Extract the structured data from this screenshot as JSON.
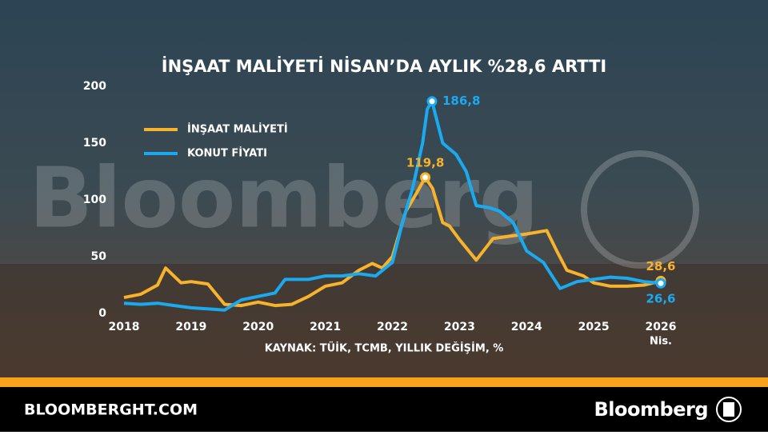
{
  "chart_data": {
    "type": "line",
    "title": "İNŞAAT MALİYETİ NİSAN’DA AYLIK %28,6 ARTTI",
    "source": "KAYNAK: TÜİK, TCMB, YILLIK DEĞİŞİM, %",
    "watermark": "Bloomberg",
    "x_end_note": "Nis.",
    "xlim": [
      2018,
      2026
    ],
    "xticks": [
      2018,
      2019,
      2020,
      2021,
      2022,
      2023,
      2024,
      2025,
      2026
    ],
    "ylim": [
      0,
      200
    ],
    "yticks": [
      0,
      50,
      100,
      150,
      200
    ],
    "grid": false,
    "legend": "upper left",
    "series": [
      {
        "name": "İNŞAAT MALİYETİ",
        "color": "#f7b32b",
        "x": [
          2018,
          2018.25,
          2018.5,
          2018.62,
          2018.85,
          2019,
          2019.25,
          2019.5,
          2019.75,
          2020,
          2020.25,
          2020.5,
          2020.75,
          2021,
          2021.25,
          2021.5,
          2021.7,
          2021.85,
          2022,
          2022.2,
          2022.35,
          2022.49,
          2022.6,
          2022.75,
          2022.85,
          2023,
          2023.25,
          2023.5,
          2023.75,
          2024,
          2024.3,
          2024.45,
          2024.6,
          2024.85,
          2025,
          2025.25,
          2025.5,
          2025.75,
          2026
        ],
        "values": [
          14,
          17,
          25,
          40,
          27,
          28,
          26,
          8,
          7,
          10,
          7,
          8,
          15,
          24,
          27,
          38,
          44,
          40,
          50,
          90,
          105,
          119.8,
          110,
          80,
          77,
          65,
          47,
          66,
          68,
          70,
          73,
          55,
          38,
          33,
          27,
          24,
          24,
          25,
          28.6
        ],
        "value_labels": [
          null,
          null,
          null,
          null,
          null,
          null,
          null,
          null,
          null,
          null,
          null,
          null,
          null,
          null,
          null,
          null,
          null,
          null,
          null,
          null,
          null,
          "119,8",
          null,
          null,
          null,
          null,
          null,
          null,
          null,
          null,
          null,
          null,
          null,
          null,
          null,
          null,
          null,
          null,
          "28,6"
        ]
      },
      {
        "name": "KONUT FİYATI",
        "color": "#1ba9ef",
        "x": [
          2018,
          2018.25,
          2018.5,
          2018.75,
          2019,
          2019.25,
          2019.5,
          2019.75,
          2020,
          2020.25,
          2020.4,
          2020.75,
          2021,
          2021.25,
          2021.5,
          2021.75,
          2022,
          2022.15,
          2022.3,
          2022.45,
          2022.52,
          2022.59,
          2022.75,
          2022.95,
          2023.1,
          2023.25,
          2023.45,
          2023.6,
          2023.8,
          2024,
          2024.25,
          2024.5,
          2024.75,
          2025,
          2025.25,
          2025.5,
          2025.75,
          2026
        ],
        "values": [
          9,
          8,
          9,
          7,
          5,
          4,
          3,
          12,
          15,
          18,
          30,
          30,
          33,
          33,
          35,
          33,
          45,
          80,
          110,
          150,
          180,
          186.8,
          150,
          140,
          125,
          95,
          93,
          90,
          80,
          55,
          45,
          22,
          28,
          30,
          32,
          31,
          28,
          26.6
        ],
        "value_labels": [
          null,
          null,
          null,
          null,
          null,
          null,
          null,
          null,
          null,
          null,
          null,
          null,
          null,
          null,
          null,
          null,
          null,
          null,
          null,
          null,
          null,
          "186,8",
          null,
          null,
          null,
          null,
          null,
          null,
          null,
          null,
          null,
          null,
          null,
          null,
          null,
          null,
          null,
          "26,6"
        ]
      }
    ]
  },
  "footer": {
    "site": "BLOOMBERGHT.COM",
    "brand": "Bloomberg"
  }
}
